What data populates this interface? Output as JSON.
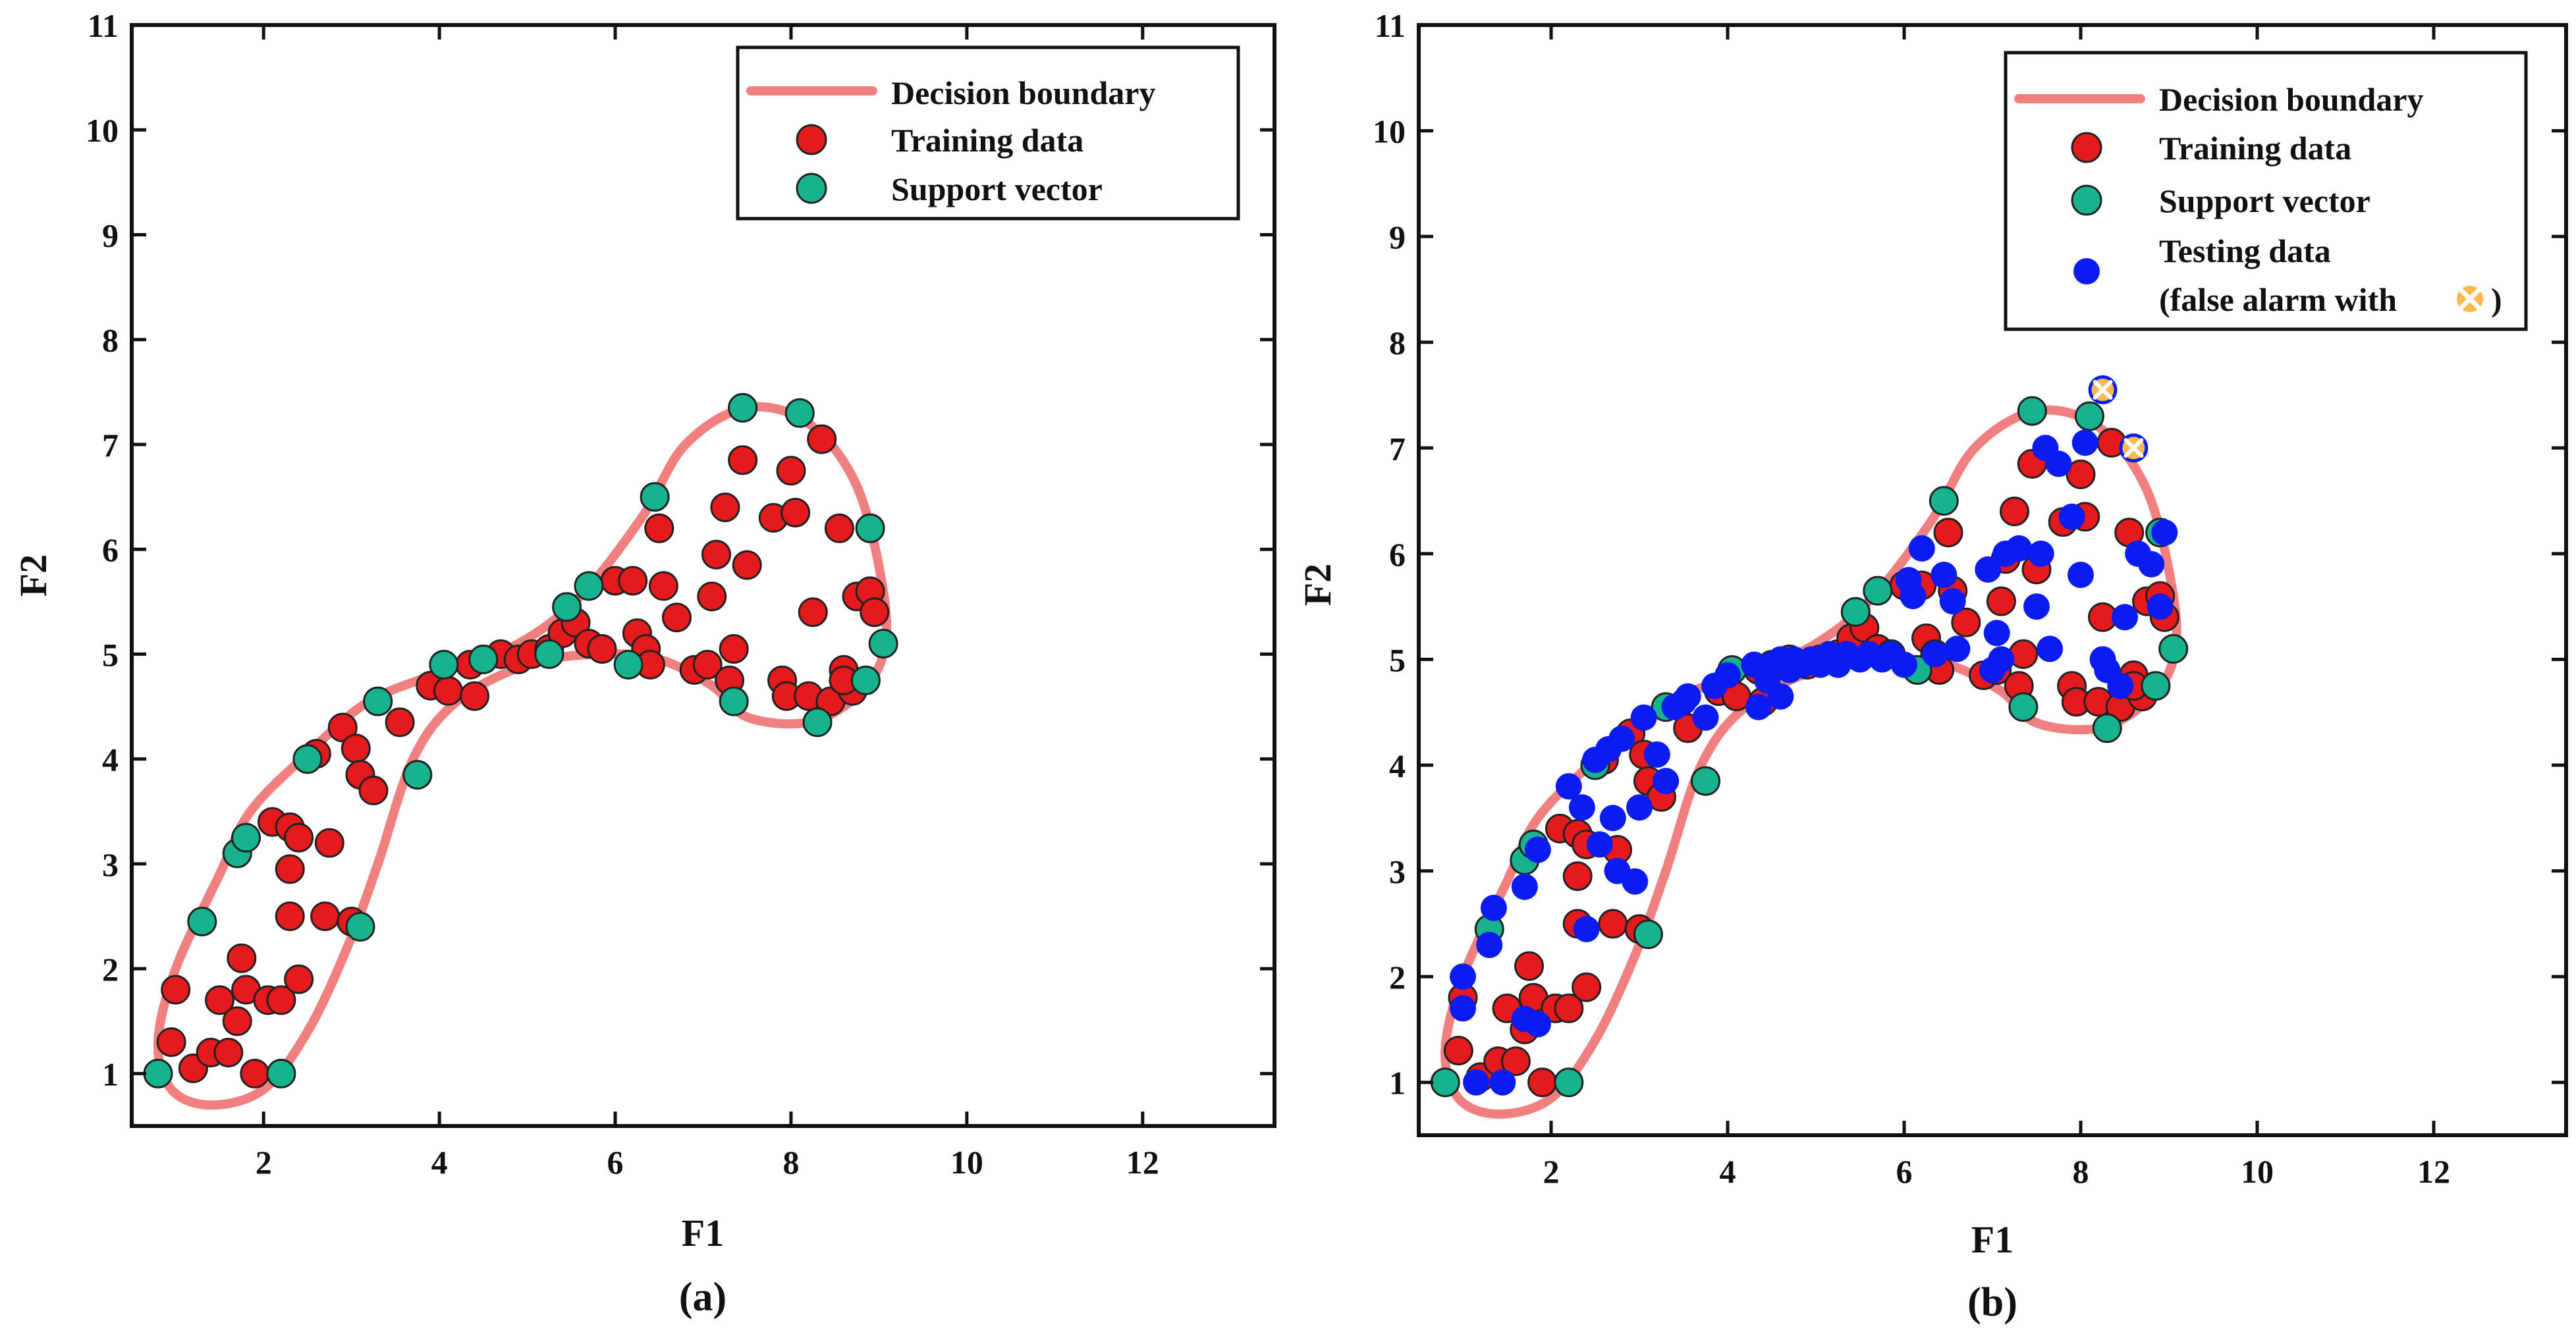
{
  "chart_data": [
    {
      "type": "scatter",
      "panel_label": "(a)",
      "xlabel": "F1",
      "ylabel": "F2",
      "xlim": [
        0.5,
        13.5
      ],
      "ylim": [
        0.5,
        11
      ],
      "xticks": [
        2,
        4,
        6,
        8,
        10,
        12
      ],
      "yticks": [
        1,
        2,
        3,
        4,
        5,
        6,
        7,
        8,
        9,
        10,
        11
      ],
      "grid": false,
      "legend_position": "top-right",
      "legend": {
        "boundary": "Decision boundary",
        "training": "Training data",
        "support": "Support vector"
      },
      "colors": {
        "boundary": "#f08080",
        "training": "#e41a1c",
        "support": "#17b38e",
        "testing": "#0a1cf0",
        "false_alarm": "#ffb84d",
        "axis": "#111111"
      },
      "decision_boundary": [
        [
          7.5,
          7.35
        ],
        [
          8.2,
          7.2
        ],
        [
          8.75,
          6.6
        ],
        [
          9.05,
          5.6
        ],
        [
          9.05,
          5.0
        ],
        [
          8.75,
          4.6
        ],
        [
          8.2,
          4.35
        ],
        [
          7.5,
          4.4
        ],
        [
          7.1,
          4.7
        ],
        [
          6.5,
          4.95
        ],
        [
          5.8,
          5.0
        ],
        [
          5.0,
          4.9
        ],
        [
          4.2,
          4.55
        ],
        [
          3.7,
          4.0
        ],
        [
          3.3,
          3.0
        ],
        [
          2.95,
          2.2
        ],
        [
          2.5,
          1.4
        ],
        [
          2.0,
          0.85
        ],
        [
          1.4,
          0.7
        ],
        [
          0.95,
          0.85
        ],
        [
          0.8,
          1.3
        ],
        [
          1.0,
          2.0
        ],
        [
          1.5,
          2.9
        ],
        [
          1.85,
          3.5
        ],
        [
          2.5,
          4.05
        ],
        [
          3.2,
          4.55
        ],
        [
          4.1,
          4.85
        ],
        [
          4.9,
          5.1
        ],
        [
          5.6,
          5.55
        ],
        [
          6.3,
          6.3
        ],
        [
          6.8,
          7.0
        ],
        [
          7.5,
          7.35
        ]
      ],
      "training_data": [
        [
          1.0,
          1.8
        ],
        [
          0.95,
          1.3
        ],
        [
          1.2,
          1.05
        ],
        [
          1.4,
          1.2
        ],
        [
          1.5,
          1.7
        ],
        [
          1.6,
          1.2
        ],
        [
          1.7,
          1.5
        ],
        [
          1.8,
          1.8
        ],
        [
          1.75,
          2.1
        ],
        [
          1.9,
          1.0
        ],
        [
          2.05,
          1.7
        ],
        [
          2.2,
          1.7
        ],
        [
          2.4,
          1.9
        ],
        [
          2.3,
          2.5
        ],
        [
          2.7,
          2.5
        ],
        [
          2.1,
          3.4
        ],
        [
          2.3,
          3.35
        ],
        [
          2.4,
          3.25
        ],
        [
          2.3,
          2.95
        ],
        [
          2.75,
          3.2
        ],
        [
          2.6,
          4.05
        ],
        [
          2.9,
          4.3
        ],
        [
          3.05,
          4.1
        ],
        [
          3.1,
          3.85
        ],
        [
          3.25,
          3.7
        ],
        [
          3.0,
          2.45
        ],
        [
          3.55,
          4.35
        ],
        [
          3.9,
          4.7
        ],
        [
          4.1,
          4.65
        ],
        [
          4.35,
          4.9
        ],
        [
          4.4,
          4.6
        ],
        [
          4.7,
          5.0
        ],
        [
          4.9,
          4.95
        ],
        [
          5.05,
          5.0
        ],
        [
          5.25,
          5.05
        ],
        [
          5.4,
          5.2
        ],
        [
          5.55,
          5.3
        ],
        [
          5.7,
          5.1
        ],
        [
          5.85,
          5.05
        ],
        [
          6.0,
          5.7
        ],
        [
          6.2,
          5.7
        ],
        [
          6.25,
          5.2
        ],
        [
          6.35,
          5.05
        ],
        [
          6.4,
          4.9
        ],
        [
          6.5,
          6.2
        ],
        [
          6.55,
          5.65
        ],
        [
          6.7,
          5.35
        ],
        [
          6.9,
          4.85
        ],
        [
          7.05,
          4.9
        ],
        [
          7.1,
          5.55
        ],
        [
          7.15,
          5.95
        ],
        [
          7.25,
          6.4
        ],
        [
          7.3,
          4.75
        ],
        [
          7.35,
          5.05
        ],
        [
          7.45,
          6.85
        ],
        [
          7.5,
          5.85
        ],
        [
          7.8,
          6.3
        ],
        [
          7.9,
          4.75
        ],
        [
          7.95,
          4.6
        ],
        [
          8.0,
          6.75
        ],
        [
          8.05,
          6.35
        ],
        [
          8.2,
          4.6
        ],
        [
          8.25,
          5.4
        ],
        [
          8.35,
          7.05
        ],
        [
          8.45,
          4.55
        ],
        [
          8.55,
          6.2
        ],
        [
          8.6,
          4.85
        ],
        [
          8.7,
          4.65
        ],
        [
          8.75,
          5.55
        ],
        [
          8.9,
          5.6
        ],
        [
          8.95,
          5.4
        ],
        [
          8.6,
          4.75
        ]
      ],
      "support_vectors": [
        [
          0.8,
          1.0
        ],
        [
          1.3,
          2.45
        ],
        [
          1.7,
          3.1
        ],
        [
          1.8,
          3.25
        ],
        [
          2.2,
          1.0
        ],
        [
          2.5,
          4.0
        ],
        [
          3.1,
          2.4
        ],
        [
          3.3,
          4.55
        ],
        [
          3.75,
          3.85
        ],
        [
          4.05,
          4.9
        ],
        [
          4.5,
          4.95
        ],
        [
          5.25,
          5.0
        ],
        [
          5.45,
          5.45
        ],
        [
          5.7,
          5.65
        ],
        [
          6.15,
          4.9
        ],
        [
          6.45,
          6.5
        ],
        [
          7.35,
          4.55
        ],
        [
          7.45,
          7.35
        ],
        [
          8.1,
          7.3
        ],
        [
          8.3,
          4.35
        ],
        [
          8.9,
          6.2
        ],
        [
          8.85,
          4.75
        ],
        [
          9.05,
          5.1
        ]
      ]
    },
    {
      "type": "scatter",
      "panel_label": "(b)",
      "xlabel": "F1",
      "ylabel": "F2",
      "xlim": [
        0.5,
        13.5
      ],
      "ylim": [
        0.5,
        11
      ],
      "xticks": [
        2,
        4,
        6,
        8,
        10,
        12
      ],
      "yticks": [
        1,
        2,
        3,
        4,
        5,
        6,
        7,
        8,
        9,
        10,
        11
      ],
      "grid": false,
      "legend_position": "top-right",
      "legend": {
        "boundary": "Decision boundary",
        "training": "Training data",
        "support": "Support vector",
        "testing_line1": "Testing data",
        "testing_line2_prefix": "(false alarm with",
        "testing_line2_suffix": ")"
      },
      "testing_data": [
        [
          1.0,
          2.0
        ],
        [
          1.0,
          1.7
        ],
        [
          1.15,
          1.0
        ],
        [
          1.3,
          2.3
        ],
        [
          1.35,
          2.65
        ],
        [
          1.45,
          1.0
        ],
        [
          1.7,
          2.85
        ],
        [
          1.7,
          1.6
        ],
        [
          1.85,
          1.55
        ],
        [
          1.85,
          3.2
        ],
        [
          2.2,
          3.8
        ],
        [
          2.35,
          3.6
        ],
        [
          2.4,
          2.45
        ],
        [
          2.5,
          4.05
        ],
        [
          2.55,
          3.25
        ],
        [
          2.65,
          4.15
        ],
        [
          2.75,
          3.0
        ],
        [
          2.7,
          3.5
        ],
        [
          2.8,
          4.25
        ],
        [
          2.95,
          2.9
        ],
        [
          3.0,
          3.6
        ],
        [
          3.05,
          4.45
        ],
        [
          3.2,
          4.1
        ],
        [
          3.3,
          3.85
        ],
        [
          3.4,
          4.55
        ],
        [
          3.5,
          4.6
        ],
        [
          3.55,
          4.65
        ],
        [
          3.75,
          4.45
        ],
        [
          3.85,
          4.75
        ],
        [
          4.0,
          4.85
        ],
        [
          4.3,
          4.95
        ],
        [
          4.35,
          4.55
        ],
        [
          4.45,
          4.8
        ],
        [
          4.5,
          4.95
        ],
        [
          4.6,
          5.0
        ],
        [
          4.6,
          4.65
        ],
        [
          4.7,
          4.9
        ],
        [
          4.75,
          5.0
        ],
        [
          4.85,
          4.95
        ],
        [
          4.95,
          5.0
        ],
        [
          5.05,
          4.95
        ],
        [
          5.15,
          5.05
        ],
        [
          5.25,
          4.95
        ],
        [
          5.35,
          5.05
        ],
        [
          5.5,
          5.0
        ],
        [
          5.6,
          5.05
        ],
        [
          5.75,
          5.0
        ],
        [
          5.85,
          5.05
        ],
        [
          6.0,
          4.95
        ],
        [
          6.05,
          5.75
        ],
        [
          6.1,
          5.6
        ],
        [
          6.2,
          6.05
        ],
        [
          6.35,
          5.05
        ],
        [
          6.45,
          5.8
        ],
        [
          6.55,
          5.55
        ],
        [
          6.6,
          5.1
        ],
        [
          6.95,
          5.85
        ],
        [
          7.0,
          4.9
        ],
        [
          7.05,
          5.25
        ],
        [
          7.1,
          5.0
        ],
        [
          7.15,
          6.0
        ],
        [
          7.3,
          6.05
        ],
        [
          7.5,
          5.5
        ],
        [
          7.55,
          6.0
        ],
        [
          7.6,
          7.0
        ],
        [
          7.75,
          6.85
        ],
        [
          7.9,
          6.35
        ],
        [
          8.0,
          5.8
        ],
        [
          8.05,
          7.05
        ],
        [
          8.25,
          5.0
        ],
        [
          8.3,
          4.9
        ],
        [
          8.45,
          4.75
        ],
        [
          8.5,
          5.4
        ],
        [
          8.65,
          6.0
        ],
        [
          8.8,
          5.9
        ],
        [
          8.9,
          5.5
        ],
        [
          8.95,
          6.2
        ],
        [
          7.65,
          5.1
        ]
      ],
      "false_alarms": [
        [
          8.25,
          7.55
        ],
        [
          8.6,
          7.0
        ]
      ]
    }
  ]
}
